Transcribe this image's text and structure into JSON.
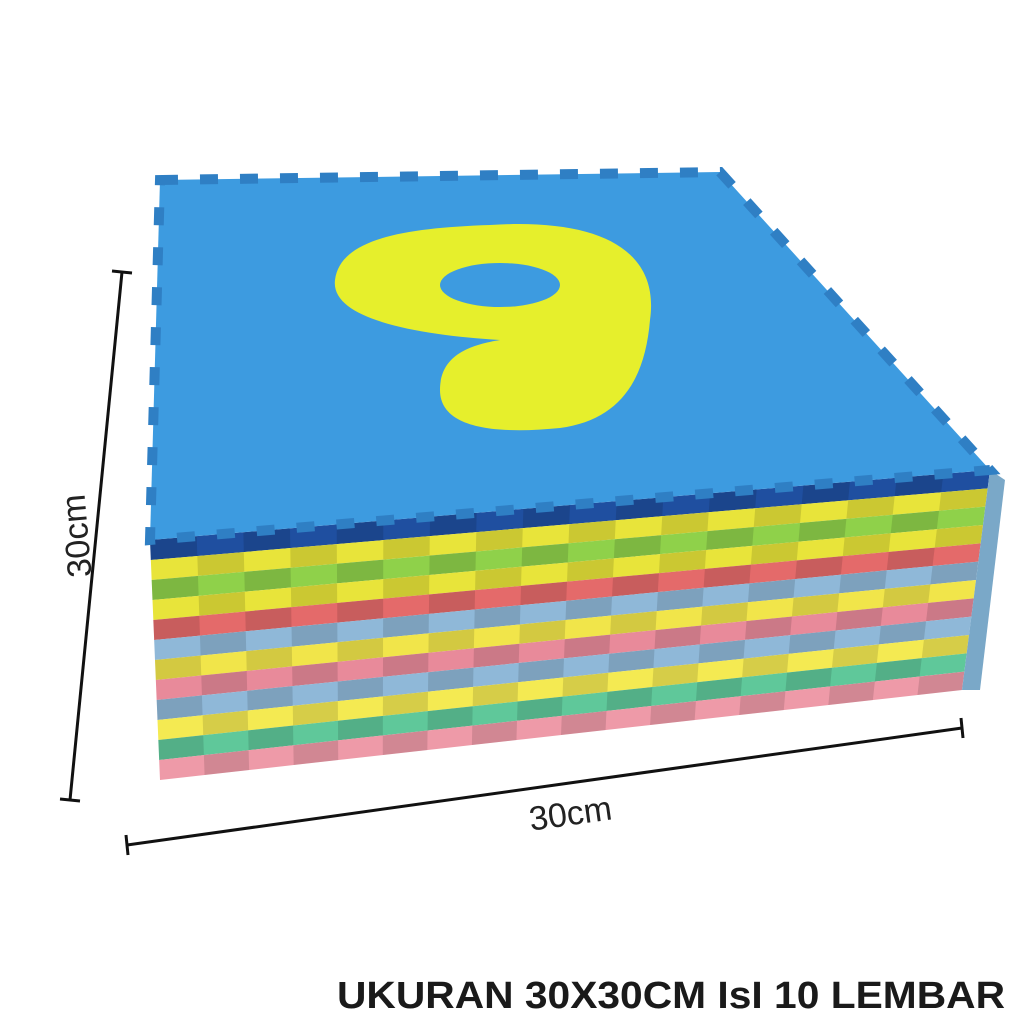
{
  "dimensions": {
    "height_label": "30cm",
    "width_label": "30cm"
  },
  "caption": "UKURAN 30X30CM IsI 10 LEMBAR"
}
